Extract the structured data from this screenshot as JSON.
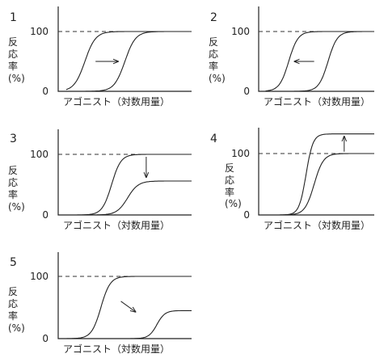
{
  "chart_data": [
    {
      "type": "line",
      "panel": "1",
      "ylabel": [
        "反",
        "応",
        "率",
        "(%)"
      ],
      "xlabel": "アゴニスト（対数用量）",
      "yticks": [
        "100",
        "0"
      ],
      "ylim": [
        0,
        140
      ],
      "reference_line": 100,
      "series": [
        {
          "ec50": 0.2,
          "slope": 0.04,
          "max": 100
        },
        {
          "ec50": 0.5,
          "slope": 0.04,
          "max": 100
        }
      ],
      "arrow": {
        "from": [
          0.28,
          50
        ],
        "to": [
          0.45,
          50
        ]
      }
    },
    {
      "type": "line",
      "panel": "2",
      "ylabel": [
        "反",
        "応",
        "率",
        "(%)"
      ],
      "xlabel": "アゴニスト（対数用量）",
      "yticks": [
        "100",
        "0"
      ],
      "ylim": [
        0,
        140
      ],
      "reference_line": 100,
      "series": [
        {
          "ec50": 0.26,
          "slope": 0.04,
          "max": 100
        },
        {
          "ec50": 0.6,
          "slope": 0.04,
          "max": 100
        }
      ],
      "arrow": {
        "from": [
          0.48,
          50
        ],
        "to": [
          0.31,
          50
        ]
      }
    },
    {
      "type": "line",
      "panel": "3",
      "ylabel": [
        "反",
        "応",
        "率",
        "(%)"
      ],
      "xlabel": "アゴニスト（対数用量）",
      "yticks": [
        "100",
        "0"
      ],
      "ylim": [
        0,
        140
      ],
      "reference_line": 100,
      "series": [
        {
          "ec50": 0.4,
          "slope": 0.035,
          "max": 100
        },
        {
          "ec50": 0.52,
          "slope": 0.04,
          "max": 56
        }
      ],
      "arrow": {
        "from": [
          0.66,
          96
        ],
        "to": [
          0.66,
          62
        ]
      }
    },
    {
      "type": "line",
      "panel": "4",
      "ylabel": [
        "反",
        "応",
        "率",
        "(%)"
      ],
      "xlabel": "アゴニスト（対数用量）",
      "yticks": [
        "100",
        "0"
      ],
      "ylim": [
        0,
        140
      ],
      "reference_line": 100,
      "series": [
        {
          "ec50": 0.41,
          "slope": 0.03,
          "max": 132
        },
        {
          "ec50": 0.48,
          "slope": 0.04,
          "max": 100
        }
      ],
      "arrow": {
        "from": [
          0.74,
          103
        ],
        "to": [
          0.74,
          128
        ]
      }
    },
    {
      "type": "line",
      "panel": "5",
      "ylabel": [
        "反",
        "応",
        "率",
        "(%)"
      ],
      "xlabel": "アゴニスト（対数用量）",
      "yticks": [
        "100",
        "0"
      ],
      "ylim": [
        0,
        140
      ],
      "reference_line": 100,
      "series": [
        {
          "ec50": 0.32,
          "slope": 0.035,
          "max": 100
        },
        {
          "ec50": 0.74,
          "slope": 0.03,
          "max": 45
        }
      ],
      "arrow": {
        "from": [
          0.47,
          60
        ],
        "to": [
          0.58,
          43
        ]
      }
    }
  ]
}
